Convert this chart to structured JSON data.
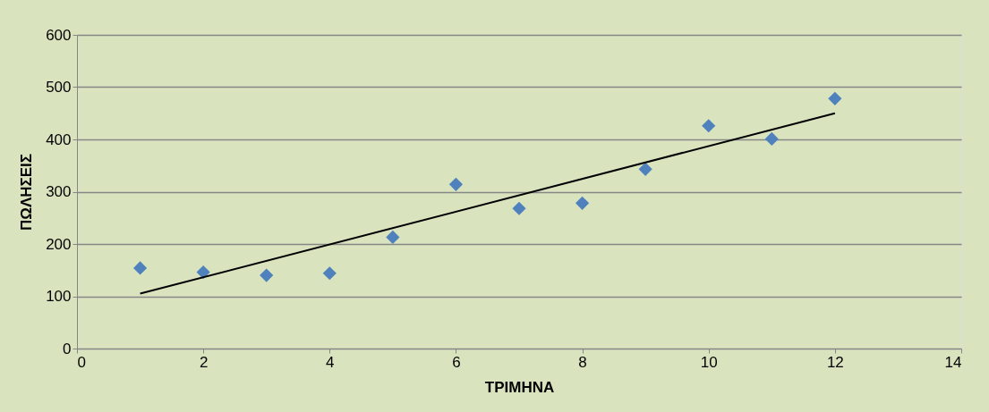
{
  "chart_data": {
    "type": "scatter",
    "xlabel": "ΤΡΙΜΗΝΑ",
    "ylabel": "ΠΩΛΗΣΕΙΣ",
    "x": [
      1,
      2,
      3,
      4,
      5,
      6,
      7,
      8,
      9,
      10,
      11,
      12
    ],
    "series": [
      {
        "color": "#4f81bd",
        "values": [
          154,
          146,
          140,
          144,
          213,
          314,
          268,
          278,
          343,
          426,
          401,
          478
        ]
      },
      {
        "type": "line",
        "color": "#000000",
        "marker": "none",
        "x": [
          1,
          12
        ],
        "values": [
          105,
          450
        ]
      }
    ],
    "xlim": [
      0,
      14
    ],
    "xticks": [
      0,
      2,
      4,
      6,
      8,
      10,
      12,
      14
    ],
    "ylim": [
      0,
      600
    ],
    "yticks": [
      0,
      100,
      200,
      300,
      400,
      500,
      600
    ],
    "grid": "y",
    "marker": "diamond",
    "line_style": "solid"
  }
}
